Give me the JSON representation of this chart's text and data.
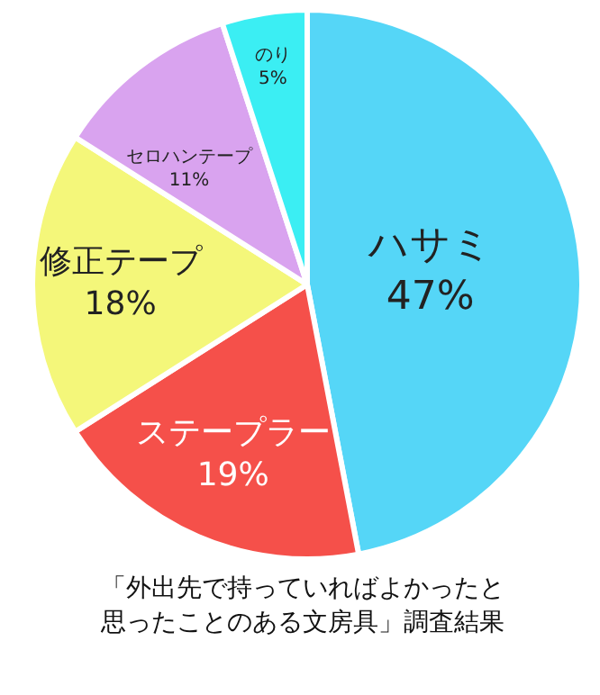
{
  "chart_data": {
    "type": "pie",
    "title": "「外出先で持っていればよかったと思ったことのある文房具」調査結果",
    "categories": [
      "ハサミ",
      "ステープラー",
      "修正テープ",
      "セロハンテープ",
      "のり"
    ],
    "values": [
      47,
      19,
      18,
      11,
      5
    ],
    "colors": [
      "#55d6f7",
      "#f5504a",
      "#f4f77a",
      "#d9a3ef",
      "#3beef3"
    ],
    "value_labels": [
      "47%",
      "19%",
      "18%",
      "11%",
      "5%"
    ],
    "legend": false
  }
}
